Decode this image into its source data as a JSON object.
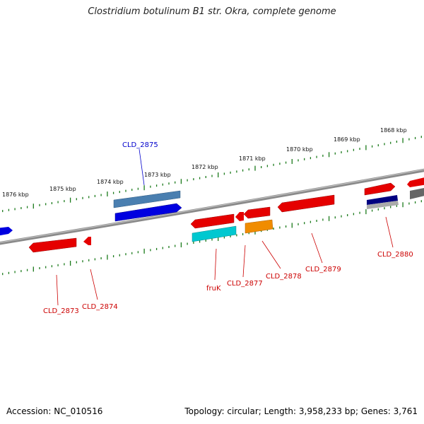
{
  "title": "Clostridium botulinum B1 str. Okra, complete genome",
  "footer": {
    "accession": "Accession: NC_010516",
    "summary": "Topology: circular; Length: 3,958,233 bp; Genes: 3,761"
  },
  "colors": {
    "backbone": "#7d7d7d",
    "ticks": "#1a7a1a",
    "gene_red": "#e50000",
    "gene_blue": "#0000e0",
    "gene_steelblue": "#4a7fb0",
    "gene_cyan": "#00c8d0",
    "gene_orange": "#f08c00",
    "gene_navy": "#000080",
    "gene_grey": "#777777",
    "label_red": "#cc0000",
    "label_blue": "#0000cc"
  },
  "scale_labels": [
    "1876 kbp",
    "1875 kbp",
    "1874 kbp",
    "1873 kbp",
    "1872 kbp",
    "1871 kbp",
    "1870 kbp",
    "1869 kbp",
    "1868 kbp"
  ],
  "gene_labels": {
    "CLD_2875": "CLD_2875",
    "CLD_2873": "CLD_2873",
    "CLD_2874": "CLD_2874",
    "fruK": "fruK",
    "CLD_2877": "CLD_2877",
    "CLD_2878": "CLD_2878",
    "CLD_2879": "CLD_2879",
    "CLD_2880": "CLD_2880"
  }
}
